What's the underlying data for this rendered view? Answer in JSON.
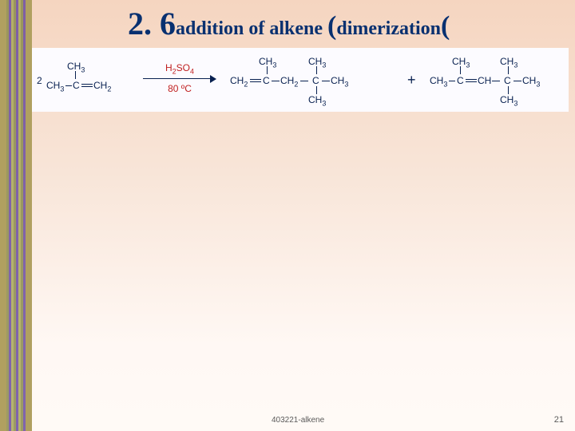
{
  "title": {
    "prefix_big": "2. 6",
    "mid": "addition of alkene ",
    "open_paren": "(",
    "inner": "dimerization",
    "close_paren": "("
  },
  "reaction": {
    "coeff": "2",
    "reactant": {
      "top": "CH3",
      "chain_left": "CH3",
      "chain_mid": "C",
      "chain_right": "CH2"
    },
    "arrow": {
      "reagent": "H2SO4",
      "condition": "80 ºC"
    },
    "product1": {
      "left_top": "CH3",
      "left_left": "CH2",
      "left_mid": "C",
      "left_right": "CH2",
      "right_top": "CH3",
      "right_mid": "C",
      "right_right": "CH3",
      "right_bot": "CH3"
    },
    "plus": "+",
    "product2": {
      "left": "CH3",
      "mid1": "C",
      "bridge": "CH",
      "right_top": "CH3",
      "right_mid": "C",
      "right_right": "CH3",
      "right_bot": "CH3"
    }
  },
  "footer": {
    "left": "403221-alkene",
    "page": "21"
  },
  "colors": {
    "title": "#083070",
    "mol": "#082050",
    "reagent": "#c02020",
    "panel_bg": "#fcfbff",
    "footer": "#5a5a5a"
  }
}
